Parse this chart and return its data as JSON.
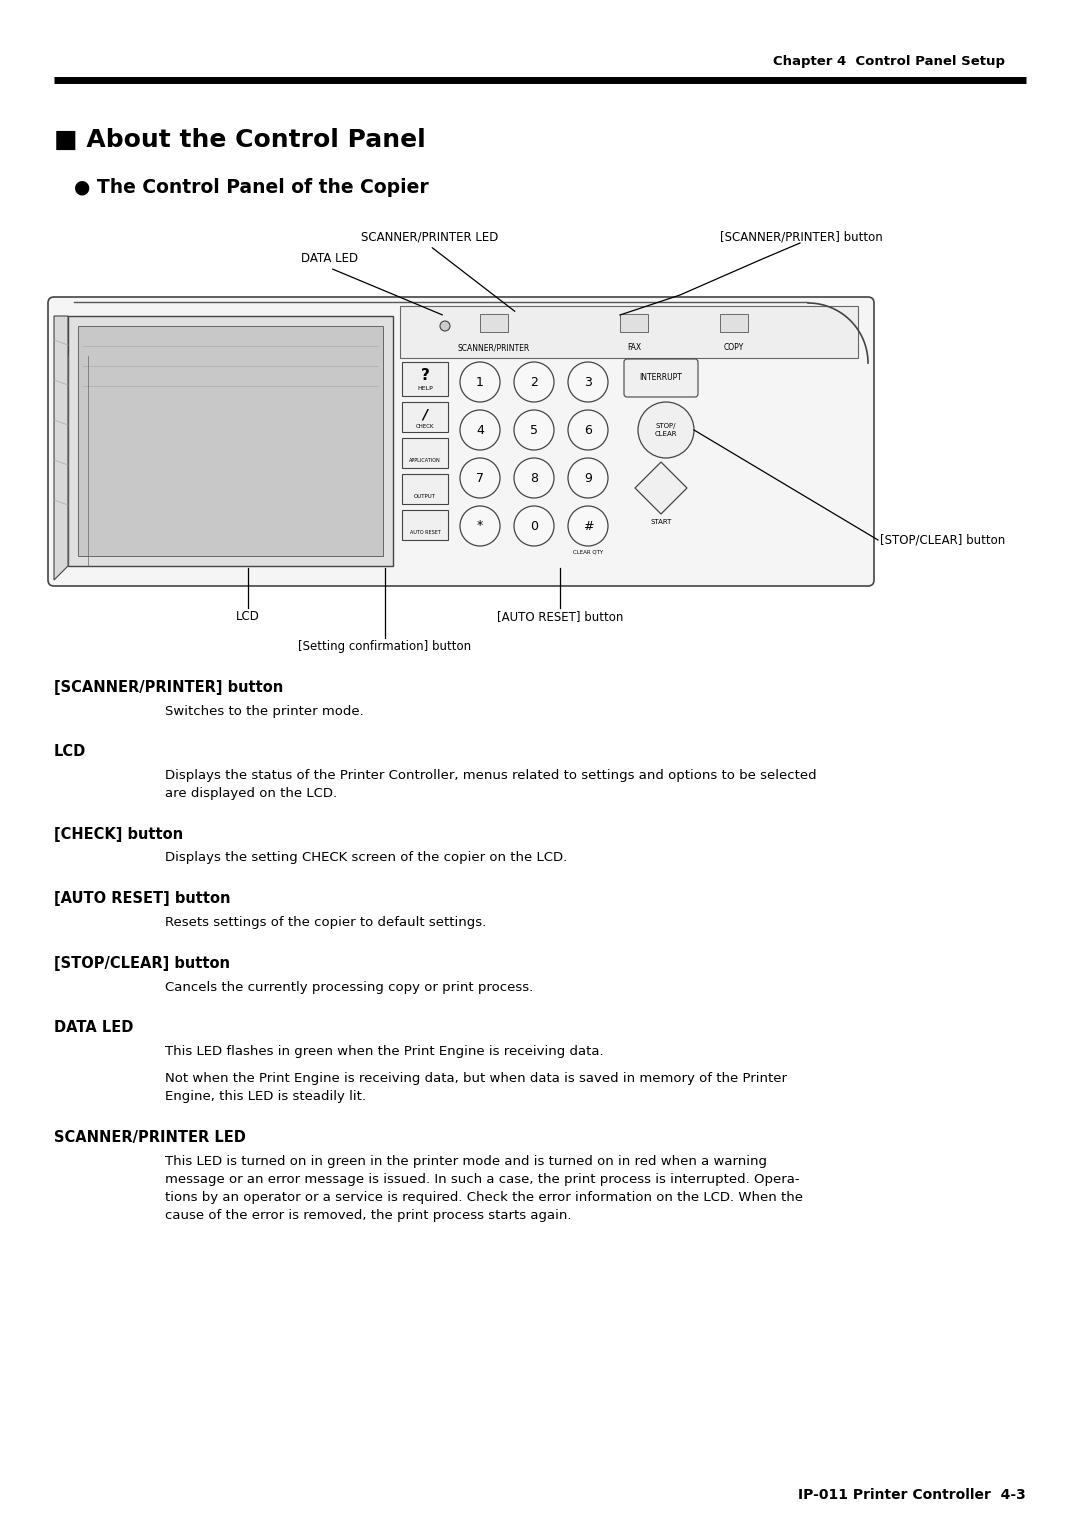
{
  "bg_color": "#ffffff",
  "header_text": "Chapter 4  Control Panel Setup",
  "title_square": "■",
  "title_text": " About the Control Panel",
  "subtitle_bullet": "●",
  "subtitle_text": " The Control Panel of the Copier",
  "footer_text": "IP-011 Printer Controller  4-3",
  "sections": [
    {
      "heading": "[SCANNER/PRINTER] button",
      "body_lines": [
        "Switches to the printer mode."
      ]
    },
    {
      "heading": "LCD",
      "body_lines": [
        "Displays the status of the Printer Controller, menus related to settings and options to be selected",
        "are displayed on the LCD."
      ]
    },
    {
      "heading": "[CHECK] button",
      "body_lines": [
        "Displays the setting CHECK screen of the copier on the LCD."
      ]
    },
    {
      "heading": "[AUTO RESET] button",
      "body_lines": [
        "Resets settings of the copier to default settings."
      ]
    },
    {
      "heading": "[STOP/CLEAR] button",
      "body_lines": [
        "Cancels the currently processing copy or print process."
      ]
    },
    {
      "heading": "DATA LED",
      "body_lines": [
        "This LED flashes in green when the Print Engine is receiving data.",
        "",
        "Not when the Print Engine is receiving data, but when data is saved in memory of the Printer",
        "Engine, this LED is steadily lit."
      ]
    },
    {
      "heading": "SCANNER/PRINTER LED",
      "body_lines": [
        "This LED is turned on in green in the printer mode and is turned on in red when a warning",
        "message or an error message is issued. In such a case, the print process is interrupted. Opera-",
        "tions by an operator or a service is required. Check the error information on the LCD. When the",
        "cause of the error is removed, the print process starts again."
      ]
    }
  ]
}
